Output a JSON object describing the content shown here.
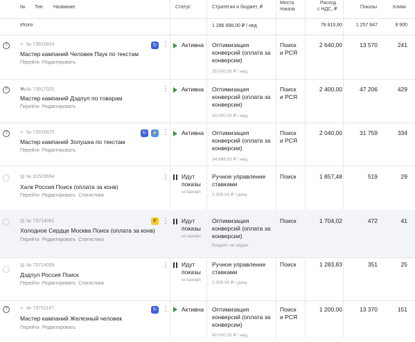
{
  "header": {
    "num": "№",
    "type": "Тип",
    "name": "Название",
    "status": "Статус",
    "strategy": "Стратегия и бюджет, ₽",
    "places_1": "Места",
    "places_2": "показа",
    "expense_1": "Расход",
    "expense_2": "с НДС, ₽",
    "shows": "Показы",
    "clicks": "Клики"
  },
  "total": {
    "label": "Итого",
    "budget": "1 286 698,00 ₽ / нед",
    "expense": "78 810,60",
    "shows": "1 257 847",
    "clicks": "8 900"
  },
  "rows": [
    {
      "id": "№ 73916824",
      "name": "Мастер кампаний Человек Паук по текстам",
      "links": [
        "Перейти",
        "Редактировать"
      ],
      "status": "Активна",
      "status_sub": "",
      "strategy": "Оптимизация конверсий (оплата за конверсии)",
      "budget": "35 000,00 ₽ / нед",
      "places": "Поиск и РСЯ",
      "expense": "2 640,00",
      "shows": "13 570",
      "clicks": "241"
    },
    {
      "id": "№ 73917020",
      "name": "Мастер кампаний Дэдпул по товарам",
      "links": [
        "Перейти",
        "Редактировать"
      ],
      "status": "Активна",
      "status_sub": "",
      "strategy": "Оптимизация конверсий (оплата за конверсии)",
      "budget": "40 000,00 ₽ / нед",
      "places": "Поиск и РСЯ",
      "expense": "2 400,00",
      "shows": "47 206",
      "clicks": "429"
    },
    {
      "id": "№ 73916670",
      "name": "Мастер кампаний Золушка по текстам",
      "links": [
        "Перейти",
        "Редактировать"
      ],
      "status": "Активна",
      "status_sub": "",
      "strategy": "Оптимизация конверсий (оплата за конверсии)",
      "budget": "34 998,00 ₽ / нед",
      "places": "Поиск и РСЯ",
      "expense": "2 040,00",
      "shows": "31 759",
      "clicks": "334"
    },
    {
      "id": "№ 81529694",
      "name": "Халк Россия Поиск (оплата за конв)",
      "links": [
        "Перейти",
        "Редактировать",
        "Статистика"
      ],
      "status": "Идут показы",
      "status_sub": "остановл",
      "strategy": "Ручное управление ставками",
      "budget": "1 000,00 ₽ / день",
      "places": "Поиск",
      "expense": "1 857,48",
      "shows": "519",
      "clicks": "29"
    },
    {
      "id": "№ 73714081",
      "name": "Холодное Сердце Москва Поиск (оплата за конв)",
      "links": [
        "Перейти",
        "Редактировать",
        "Статистика"
      ],
      "status": "Идут показы",
      "status_sub": "остановл",
      "strategy": "Оптимизация конверсий (оплата за конверсии)",
      "budget": "Бюджет не задан",
      "places": "Поиск",
      "expense": "1 704,02",
      "shows": "472",
      "clicks": "41"
    },
    {
      "id": "№ 73714059",
      "name": "Дэдпул Россия Поиск",
      "links": [
        "Перейти",
        "Редактировать",
        "Статистика"
      ],
      "status": "Идут показы",
      "status_sub": "остановл",
      "strategy": "Ручное управление ставками",
      "budget": "1 000,00 ₽ / день",
      "places": "Поиск",
      "expense": "1 283,83",
      "shows": "351",
      "clicks": "25"
    },
    {
      "id": "№ 73751147",
      "name": "Мастер кампаний Железный человек",
      "links": [
        "Перейти",
        "Редактировать"
      ],
      "status": "Активна",
      "status_sub": "",
      "strategy": "Оптимизация конверсий (оплата за конверсии)",
      "budget": "40 000,00 ₽ / нед",
      "places": "Поиск и РСЯ",
      "expense": "1 200,00",
      "shows": "13 370",
      "clicks": "151"
    }
  ],
  "colors": {
    "active": "#2e9e3a",
    "highlight_row": "#f2f4f9",
    "badge_blue": "#3b5fd6"
  }
}
